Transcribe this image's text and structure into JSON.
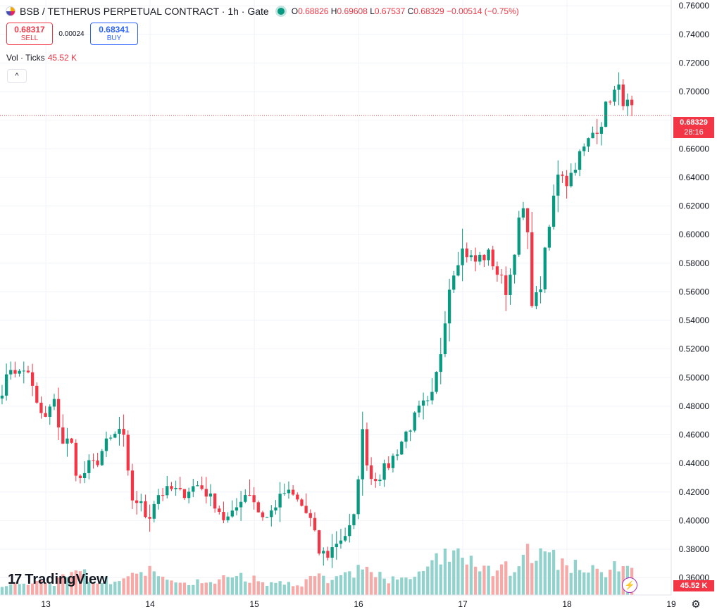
{
  "header": {
    "title": "BSB / TETHERUS PERPETUAL CONTRACT · 1h · Gate",
    "ohlc": {
      "o_label": "O",
      "o": "0.68826",
      "h_label": "H",
      "h": "0.69608",
      "l_label": "L",
      "l": "0.67537",
      "c_label": "C",
      "c": "0.68329",
      "change": "−0.00514 (−0.75%)"
    }
  },
  "trade": {
    "sell_price": "0.68317",
    "sell_label": "SELL",
    "spread": "0.00024",
    "buy_price": "0.68341",
    "buy_label": "BUY"
  },
  "volume_indicator": {
    "label": "Vol · Ticks",
    "value": "45.52 K"
  },
  "collapse_label": "^",
  "brand": {
    "mark": "17",
    "name": "TradingView"
  },
  "last_price": {
    "price": "0.68329",
    "countdown": "28:16"
  },
  "volume_tag": "45.52 K",
  "icons": {
    "bolt": "lightning-icon",
    "settings": "gear-icon",
    "logo": "symbol-logo-icon"
  },
  "colors": {
    "up": "#089981",
    "down": "#f23645",
    "up_vol": "#92d2cc",
    "down_vol": "#f7a9a7"
  },
  "chart_data": {
    "type": "candlestick",
    "y_ticks": [
      "0.76000",
      "0.74000",
      "0.72000",
      "0.70000",
      "0.68000",
      "0.66000",
      "0.64000",
      "0.62000",
      "0.60000",
      "0.58000",
      "0.56000",
      "0.54000",
      "0.52000",
      "0.50000",
      "0.48000",
      "0.46000",
      "0.44000",
      "0.42000",
      "0.40000",
      "0.38000",
      "0.36000"
    ],
    "ylim": [
      0.348,
      0.764
    ],
    "x_ticks": [
      "13",
      "14",
      "15",
      "16",
      "17",
      "18",
      "19"
    ],
    "x_tick_days": [
      13,
      14,
      15,
      16,
      17,
      18,
      19
    ],
    "xlim": [
      12.56,
      19.0
    ],
    "candle_start_day": 12.58,
    "candle_step_day": 0.04167,
    "key_points": [
      [
        0.491,
        0.1
      ],
      [
        0.507,
        0.15
      ],
      [
        0.503,
        0.1
      ],
      [
        0.506,
        0.12
      ],
      [
        0.481,
        0.18
      ],
      [
        0.47,
        0.2
      ],
      [
        0.485,
        0.15
      ],
      [
        0.455,
        0.25
      ],
      [
        0.455,
        0.6
      ],
      [
        0.426,
        0.55
      ],
      [
        0.438,
        0.3
      ],
      [
        0.44,
        0.2
      ],
      [
        0.453,
        0.2
      ],
      [
        0.458,
        0.25
      ],
      [
        0.466,
        0.2
      ],
      [
        0.416,
        0.35
      ],
      [
        0.413,
        0.25
      ],
      [
        0.401,
        0.4
      ],
      [
        0.418,
        0.3
      ],
      [
        0.42,
        0.2
      ],
      [
        0.422,
        0.2
      ],
      [
        0.418,
        0.2
      ],
      [
        0.423,
        0.15
      ],
      [
        0.425,
        0.2
      ],
      [
        0.418,
        0.15
      ],
      [
        0.411,
        0.2
      ],
      [
        0.4,
        0.25
      ],
      [
        0.404,
        0.2
      ],
      [
        0.418,
        0.3
      ],
      [
        0.42,
        0.25
      ],
      [
        0.405,
        0.2
      ],
      [
        0.402,
        0.15
      ],
      [
        0.412,
        0.15
      ],
      [
        0.42,
        0.2
      ],
      [
        0.417,
        0.15
      ],
      [
        0.41,
        0.15
      ],
      [
        0.4,
        0.25
      ],
      [
        0.378,
        0.3
      ],
      [
        0.376,
        0.2
      ],
      [
        0.385,
        0.25
      ],
      [
        0.39,
        0.3
      ],
      [
        0.397,
        0.35
      ],
      [
        0.462,
        0.6
      ],
      [
        0.43,
        0.4
      ],
      [
        0.432,
        0.3
      ],
      [
        0.438,
        0.2
      ],
      [
        0.448,
        0.25
      ],
      [
        0.46,
        0.3
      ],
      [
        0.47,
        0.3
      ],
      [
        0.48,
        0.35
      ],
      [
        0.48,
        0.4
      ],
      [
        0.51,
        0.7
      ],
      [
        0.56,
        0.7
      ],
      [
        0.585,
        0.8
      ],
      [
        0.59,
        0.6
      ],
      [
        0.58,
        0.5
      ],
      [
        0.585,
        0.4
      ],
      [
        0.585,
        0.5
      ],
      [
        0.57,
        0.4
      ],
      [
        0.56,
        0.45
      ],
      [
        0.6,
        0.6
      ],
      [
        0.62,
        0.7
      ],
      [
        0.545,
        0.8
      ],
      [
        0.57,
        0.7
      ],
      [
        0.61,
        0.65
      ],
      [
        0.65,
        0.6
      ],
      [
        0.636,
        0.55
      ],
      [
        0.652,
        0.45
      ],
      [
        0.66,
        0.4
      ],
      [
        0.672,
        0.4
      ],
      [
        0.68,
        0.4
      ],
      [
        0.698,
        0.5
      ],
      [
        0.7,
        0.55
      ],
      [
        0.69,
        0.4
      ],
      [
        0.683,
        0.4
      ]
    ]
  }
}
